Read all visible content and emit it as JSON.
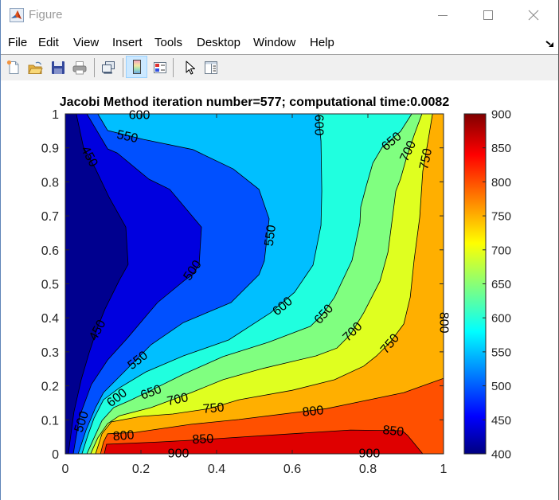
{
  "window": {
    "title": "Figure",
    "controls": {
      "minimize": "minimize",
      "maximize": "maximize",
      "close": "close"
    }
  },
  "menu": {
    "items": [
      {
        "label": "File"
      },
      {
        "label": "Edit"
      },
      {
        "label": "View"
      },
      {
        "label": "Insert"
      },
      {
        "label": "Tools"
      },
      {
        "label": "Desktop"
      },
      {
        "label": "Window"
      },
      {
        "label": "Help"
      }
    ],
    "dock_icon": "dock-arrow-icon"
  },
  "toolbar": {
    "buttons": [
      {
        "icon": "new-figure-icon"
      },
      {
        "icon": "open-file-icon"
      },
      {
        "icon": "save-icon"
      },
      {
        "icon": "print-icon"
      },
      {
        "icon": "link-plot-icon"
      },
      {
        "icon": "insert-colorbar-icon",
        "pressed": true
      },
      {
        "icon": "insert-legend-icon"
      },
      {
        "icon": "edit-plot-pointer-icon"
      },
      {
        "icon": "property-inspector-icon"
      }
    ]
  },
  "chart_data": {
    "type": "heatmap",
    "subtype": "filled contour",
    "title": "Jacobi Method iteration number=577; computational time:0.0082",
    "xlabel": "",
    "ylabel": "",
    "xlim": [
      0,
      1
    ],
    "ylim": [
      0,
      1
    ],
    "grid": false,
    "xticks": [
      0,
      0.2,
      0.4,
      0.6,
      0.8,
      1
    ],
    "xtick_labels": [
      "0",
      "0.2",
      "0.4",
      "0.6",
      "0.8",
      "1"
    ],
    "yticks": [
      0,
      0.1,
      0.2,
      0.3,
      0.4,
      0.5,
      0.6,
      0.7,
      0.8,
      0.9,
      1
    ],
    "ytick_labels": [
      "0",
      "0.1",
      "0.2",
      "0.3",
      "0.4",
      "0.5",
      "0.6",
      "0.7",
      "0.8",
      "0.9",
      "1"
    ],
    "levels": [
      400,
      450,
      500,
      550,
      600,
      650,
      700,
      750,
      800,
      850,
      900
    ],
    "band_colors": [
      "#00008f",
      "#0000df",
      "#0050ff",
      "#00bfff",
      "#20ffdf",
      "#80ff80",
      "#dfff20",
      "#ffaf00",
      "#ff5000",
      "#df0000"
    ],
    "contours": [
      {
        "level": 450,
        "points": [
          [
            0.029,
            1
          ],
          [
            0.048,
            0.902
          ],
          [
            0.08,
            0.838
          ],
          [
            0.116,
            0.754
          ],
          [
            0.16,
            0.667
          ],
          [
            0.166,
            0.557
          ],
          [
            0.143,
            0.511
          ],
          [
            0.105,
            0.426
          ],
          [
            0.084,
            0.368
          ],
          [
            0.063,
            0.297
          ],
          [
            0.042,
            0.218
          ],
          [
            0.023,
            0.124
          ],
          [
            0.008,
            0
          ]
        ],
        "close": [
          [
            1,
            0
          ],
          [
            1,
            1
          ]
        ]
      },
      {
        "level": 500,
        "points": [
          [
            0.057,
            1
          ],
          [
            0.112,
            0.897
          ],
          [
            0.137,
            0.885
          ],
          [
            0.221,
            0.808
          ],
          [
            0.276,
            0.778
          ],
          [
            0.36,
            0.667
          ],
          [
            0.354,
            0.557
          ],
          [
            0.337,
            0.527
          ],
          [
            0.316,
            0.511
          ],
          [
            0.244,
            0.445
          ],
          [
            0.221,
            0.415
          ],
          [
            0.164,
            0.34
          ],
          [
            0.112,
            0.276
          ],
          [
            0.069,
            0.204
          ],
          [
            0.038,
            0.11
          ],
          [
            0.021,
            0
          ]
        ],
        "close": [
          [
            1,
            0
          ],
          [
            1,
            1
          ]
        ]
      },
      {
        "level": 550,
        "points": [
          [
            0.086,
            1
          ],
          [
            0.112,
            0.951
          ],
          [
            0.206,
            0.925
          ],
          [
            0.337,
            0.895
          ],
          [
            0.444,
            0.838
          ],
          [
            0.512,
            0.778
          ],
          [
            0.539,
            0.691
          ],
          [
            0.526,
            0.567
          ],
          [
            0.512,
            0.527
          ],
          [
            0.438,
            0.445
          ],
          [
            0.312,
            0.386
          ],
          [
            0.227,
            0.321
          ],
          [
            0.143,
            0.227
          ],
          [
            0.101,
            0.18
          ],
          [
            0.08,
            0.136
          ],
          [
            0.055,
            0.07
          ],
          [
            0.034,
            0
          ]
        ],
        "close": [
          [
            1,
            0
          ],
          [
            1,
            1
          ]
        ]
      },
      {
        "level": 600,
        "points": [
          [
            0.669,
            1
          ],
          [
            0.676,
            0.92
          ],
          [
            0.678,
            0.773
          ],
          [
            0.676,
            0.672
          ],
          [
            0.655,
            0.555
          ],
          [
            0.606,
            0.475
          ],
          [
            0.543,
            0.415
          ],
          [
            0.432,
            0.335
          ],
          [
            0.312,
            0.288
          ],
          [
            0.213,
            0.241
          ],
          [
            0.143,
            0.194
          ],
          [
            0.101,
            0.159
          ],
          [
            0.076,
            0.105
          ],
          [
            0.059,
            0.052
          ],
          [
            0.044,
            0
          ]
        ],
        "close": [
          [
            1,
            0
          ],
          [
            1,
            1
          ]
        ]
      },
      {
        "level": 650,
        "points": [
          [
            0.916,
            1
          ],
          [
            0.886,
            0.948
          ],
          [
            0.838,
            0.902
          ],
          [
            0.813,
            0.855
          ],
          [
            0.796,
            0.789
          ],
          [
            0.781,
            0.726
          ],
          [
            0.779,
            0.679
          ],
          [
            0.758,
            0.569
          ],
          [
            0.712,
            0.461
          ],
          [
            0.68,
            0.41
          ],
          [
            0.648,
            0.375
          ],
          [
            0.537,
            0.328
          ],
          [
            0.417,
            0.286
          ],
          [
            0.312,
            0.234
          ],
          [
            0.227,
            0.187
          ],
          [
            0.171,
            0.157
          ],
          [
            0.128,
            0.136
          ],
          [
            0.097,
            0.098
          ],
          [
            0.076,
            0.047
          ],
          [
            0.057,
            0
          ]
        ],
        "close": [
          [
            1,
            0
          ],
          [
            1,
            1
          ]
        ]
      },
      {
        "level": 700,
        "points": [
          [
            0.943,
            1
          ],
          [
            0.922,
            0.937
          ],
          [
            0.901,
            0.867
          ],
          [
            0.886,
            0.808
          ],
          [
            0.874,
            0.773
          ],
          [
            0.865,
            0.696
          ],
          [
            0.853,
            0.593
          ],
          [
            0.832,
            0.508
          ],
          [
            0.789,
            0.415
          ],
          [
            0.754,
            0.351
          ],
          [
            0.718,
            0.311
          ],
          [
            0.663,
            0.288
          ],
          [
            0.522,
            0.251
          ],
          [
            0.417,
            0.218
          ],
          [
            0.333,
            0.18
          ],
          [
            0.227,
            0.136
          ],
          [
            0.143,
            0.112
          ],
          [
            0.112,
            0.089
          ],
          [
            0.086,
            0.047
          ],
          [
            0.067,
            0
          ]
        ],
        "close": [
          [
            1,
            0
          ],
          [
            1,
            1
          ]
        ]
      },
      {
        "level": 750,
        "points": [
          [
            0.971,
            1
          ],
          [
            0.958,
            0.913
          ],
          [
            0.945,
            0.831
          ],
          [
            0.937,
            0.696
          ],
          [
            0.922,
            0.569
          ],
          [
            0.912,
            0.461
          ],
          [
            0.895,
            0.382
          ],
          [
            0.859,
            0.328
          ],
          [
            0.823,
            0.288
          ],
          [
            0.789,
            0.258
          ],
          [
            0.712,
            0.218
          ],
          [
            0.6,
            0.187
          ],
          [
            0.459,
            0.159
          ],
          [
            0.381,
            0.133
          ],
          [
            0.284,
            0.117
          ],
          [
            0.2,
            0.11
          ],
          [
            0.122,
            0.094
          ],
          [
            0.097,
            0.059
          ],
          [
            0.08,
            0
          ]
        ],
        "close": [
          [
            1,
            0
          ],
          [
            1,
            1
          ]
        ]
      },
      {
        "level": 800,
        "points": [
          [
            1,
            0.222
          ],
          [
            0.895,
            0.18
          ],
          [
            0.691,
            0.133
          ],
          [
            0.459,
            0.101
          ],
          [
            0.333,
            0.087
          ],
          [
            0.185,
            0.063
          ],
          [
            0.112,
            0.059
          ],
          [
            0.101,
            0.035
          ],
          [
            0.093,
            0
          ]
        ],
        "close": [
          [
            1,
            0
          ]
        ]
      },
      {
        "level": 850,
        "points": [
          [
            0.103,
            0
          ],
          [
            0.109,
            0.028
          ],
          [
            0.248,
            0.035
          ],
          [
            0.364,
            0.042
          ],
          [
            0.459,
            0.049
          ],
          [
            0.754,
            0.07
          ],
          [
            0.891,
            0.068
          ],
          [
            0.905,
            0.054
          ],
          [
            0.945,
            0
          ]
        ],
        "close": []
      }
    ],
    "contour_labels": [
      {
        "text": "600",
        "x": 0.196,
        "y": 0.995,
        "rot": 0
      },
      {
        "text": "550",
        "x": 0.164,
        "y": 0.932,
        "rot": 12
      },
      {
        "text": "450",
        "x": 0.063,
        "y": 0.874,
        "rot": 62
      },
      {
        "text": "600",
        "x": 0.669,
        "y": 0.967,
        "rot": 90
      },
      {
        "text": "650",
        "x": 0.863,
        "y": 0.918,
        "rot": -40
      },
      {
        "text": "700",
        "x": 0.907,
        "y": 0.89,
        "rot": -65
      },
      {
        "text": "750",
        "x": 0.954,
        "y": 0.867,
        "rot": -78
      },
      {
        "text": "550",
        "x": 0.543,
        "y": 0.642,
        "rot": -82
      },
      {
        "text": "500",
        "x": 0.337,
        "y": 0.539,
        "rot": -55
      },
      {
        "text": "600",
        "x": 0.575,
        "y": 0.433,
        "rot": -40
      },
      {
        "text": "650",
        "x": 0.684,
        "y": 0.41,
        "rot": -48
      },
      {
        "text": "700",
        "x": 0.76,
        "y": 0.358,
        "rot": -45
      },
      {
        "text": "750",
        "x": 0.859,
        "y": 0.323,
        "rot": -50
      },
      {
        "text": "800",
        "x": 1.0,
        "y": 0.386,
        "rot": 90
      },
      {
        "text": "450",
        "x": 0.086,
        "y": 0.363,
        "rot": -62
      },
      {
        "text": "550",
        "x": 0.192,
        "y": 0.274,
        "rot": -38
      },
      {
        "text": "600",
        "x": 0.137,
        "y": 0.164,
        "rot": -38
      },
      {
        "text": "650",
        "x": 0.227,
        "y": 0.18,
        "rot": -20
      },
      {
        "text": "700",
        "x": 0.297,
        "y": 0.159,
        "rot": -12
      },
      {
        "text": "750",
        "x": 0.392,
        "y": 0.133,
        "rot": -5
      },
      {
        "text": "800",
        "x": 0.655,
        "y": 0.124,
        "rot": -6
      },
      {
        "text": "500",
        "x": 0.044,
        "y": 0.094,
        "rot": -72
      },
      {
        "text": "800",
        "x": 0.154,
        "y": 0.052,
        "rot": -5
      },
      {
        "text": "850",
        "x": 0.364,
        "y": 0.042,
        "rot": -3
      },
      {
        "text": "850",
        "x": 0.867,
        "y": 0.066,
        "rot": 6
      },
      {
        "text": "900",
        "x": 0.299,
        "y": 0.0,
        "rot": 0
      },
      {
        "text": "900",
        "x": 0.804,
        "y": 0.0,
        "rot": 0
      }
    ],
    "colorbar": {
      "position": "right",
      "colormap": "jet",
      "min": 400,
      "max": 900,
      "ticks": [
        400,
        450,
        500,
        550,
        600,
        650,
        700,
        750,
        800,
        850,
        900
      ],
      "tick_labels": [
        "400",
        "450",
        "500",
        "550",
        "600",
        "650",
        "700",
        "750",
        "800",
        "850",
        "900"
      ],
      "stops": [
        [
          0,
          "#000080"
        ],
        [
          0.11,
          "#0000ff"
        ],
        [
          0.36,
          "#00ffff"
        ],
        [
          0.62,
          "#ffff00"
        ],
        [
          0.88,
          "#ff0000"
        ],
        [
          1,
          "#800000"
        ]
      ]
    }
  }
}
